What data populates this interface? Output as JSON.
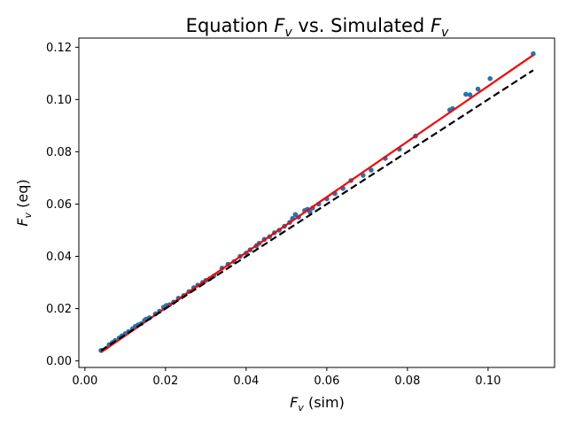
{
  "chart_data": {
    "type": "scatter",
    "title": {
      "prefix": "Equation ",
      "var": "F",
      "sub": "v",
      "middle": " vs. Simulated ",
      "var2": "F",
      "sub2": "v"
    },
    "xlabel": {
      "var": "F",
      "sub": "v",
      "suffix": " (sim)"
    },
    "ylabel": {
      "var": "F",
      "sub": "v",
      "suffix": " (eq)"
    },
    "xlim": [
      -0.0015,
      0.1165
    ],
    "ylim": [
      -0.0025,
      0.1235
    ],
    "x_ticks": [
      0.0,
      0.02,
      0.04,
      0.06,
      0.08,
      0.1
    ],
    "x_tick_labels": [
      "0.00",
      "0.02",
      "0.04",
      "0.06",
      "0.08",
      "0.10"
    ],
    "y_ticks": [
      0.0,
      0.02,
      0.04,
      0.06,
      0.08,
      0.1,
      0.12
    ],
    "y_tick_labels": [
      "0.00",
      "0.02",
      "0.04",
      "0.06",
      "0.08",
      "0.10",
      "0.12"
    ],
    "grid": false,
    "series": [
      {
        "kind": "scatter",
        "color": "#1f77b4",
        "points": [
          [
            0.004,
            0.004
          ],
          [
            0.006,
            0.0062
          ],
          [
            0.0068,
            0.007
          ],
          [
            0.0075,
            0.0078
          ],
          [
            0.0085,
            0.0088
          ],
          [
            0.0092,
            0.0096
          ],
          [
            0.01,
            0.0104
          ],
          [
            0.0108,
            0.0112
          ],
          [
            0.0118,
            0.0123
          ],
          [
            0.0125,
            0.0132
          ],
          [
            0.0132,
            0.0138
          ],
          [
            0.014,
            0.0143
          ],
          [
            0.0148,
            0.0155
          ],
          [
            0.0152,
            0.016
          ],
          [
            0.016,
            0.0165
          ],
          [
            0.0175,
            0.018
          ],
          [
            0.0185,
            0.019
          ],
          [
            0.0195,
            0.0205
          ],
          [
            0.0202,
            0.0212
          ],
          [
            0.021,
            0.0215
          ],
          [
            0.022,
            0.0225
          ],
          [
            0.0232,
            0.024
          ],
          [
            0.0245,
            0.025
          ],
          [
            0.0258,
            0.0265
          ],
          [
            0.027,
            0.028
          ],
          [
            0.028,
            0.029
          ],
          [
            0.0292,
            0.03
          ],
          [
            0.03,
            0.0308
          ],
          [
            0.031,
            0.0315
          ],
          [
            0.032,
            0.0325
          ],
          [
            0.034,
            0.0355
          ],
          [
            0.0355,
            0.037
          ],
          [
            0.037,
            0.038
          ],
          [
            0.0385,
            0.04
          ],
          [
            0.04,
            0.0412
          ],
          [
            0.041,
            0.0425
          ],
          [
            0.0425,
            0.044
          ],
          [
            0.0432,
            0.045
          ],
          [
            0.0445,
            0.0465
          ],
          [
            0.0458,
            0.0475
          ],
          [
            0.047,
            0.049
          ],
          [
            0.0482,
            0.05
          ],
          [
            0.0495,
            0.0515
          ],
          [
            0.0508,
            0.053
          ],
          [
            0.0515,
            0.0545
          ],
          [
            0.0522,
            0.056
          ],
          [
            0.053,
            0.055
          ],
          [
            0.0545,
            0.0575
          ],
          [
            0.0552,
            0.058
          ],
          [
            0.0558,
            0.057
          ],
          [
            0.0565,
            0.0585
          ],
          [
            0.058,
            0.06
          ],
          [
            0.06,
            0.062
          ],
          [
            0.062,
            0.064
          ],
          [
            0.064,
            0.066
          ],
          [
            0.066,
            0.069
          ],
          [
            0.069,
            0.071
          ],
          [
            0.071,
            0.073
          ],
          [
            0.0745,
            0.0775
          ],
          [
            0.078,
            0.081
          ],
          [
            0.082,
            0.086
          ],
          [
            0.0905,
            0.096
          ],
          [
            0.0912,
            0.0965
          ],
          [
            0.0945,
            0.102
          ],
          [
            0.0955,
            0.1018
          ],
          [
            0.0975,
            0.104
          ],
          [
            0.1005,
            0.108
          ],
          [
            0.1112,
            0.1175
          ]
        ]
      },
      {
        "kind": "line",
        "color": "#ff0000",
        "style": "solid",
        "points": [
          [
            0.004,
            0.0033
          ],
          [
            0.1112,
            0.117
          ]
        ]
      },
      {
        "kind": "line",
        "color": "#000000",
        "style": "dashed",
        "points": [
          [
            0.004,
            0.004
          ],
          [
            0.1112,
            0.1112
          ]
        ]
      }
    ]
  }
}
